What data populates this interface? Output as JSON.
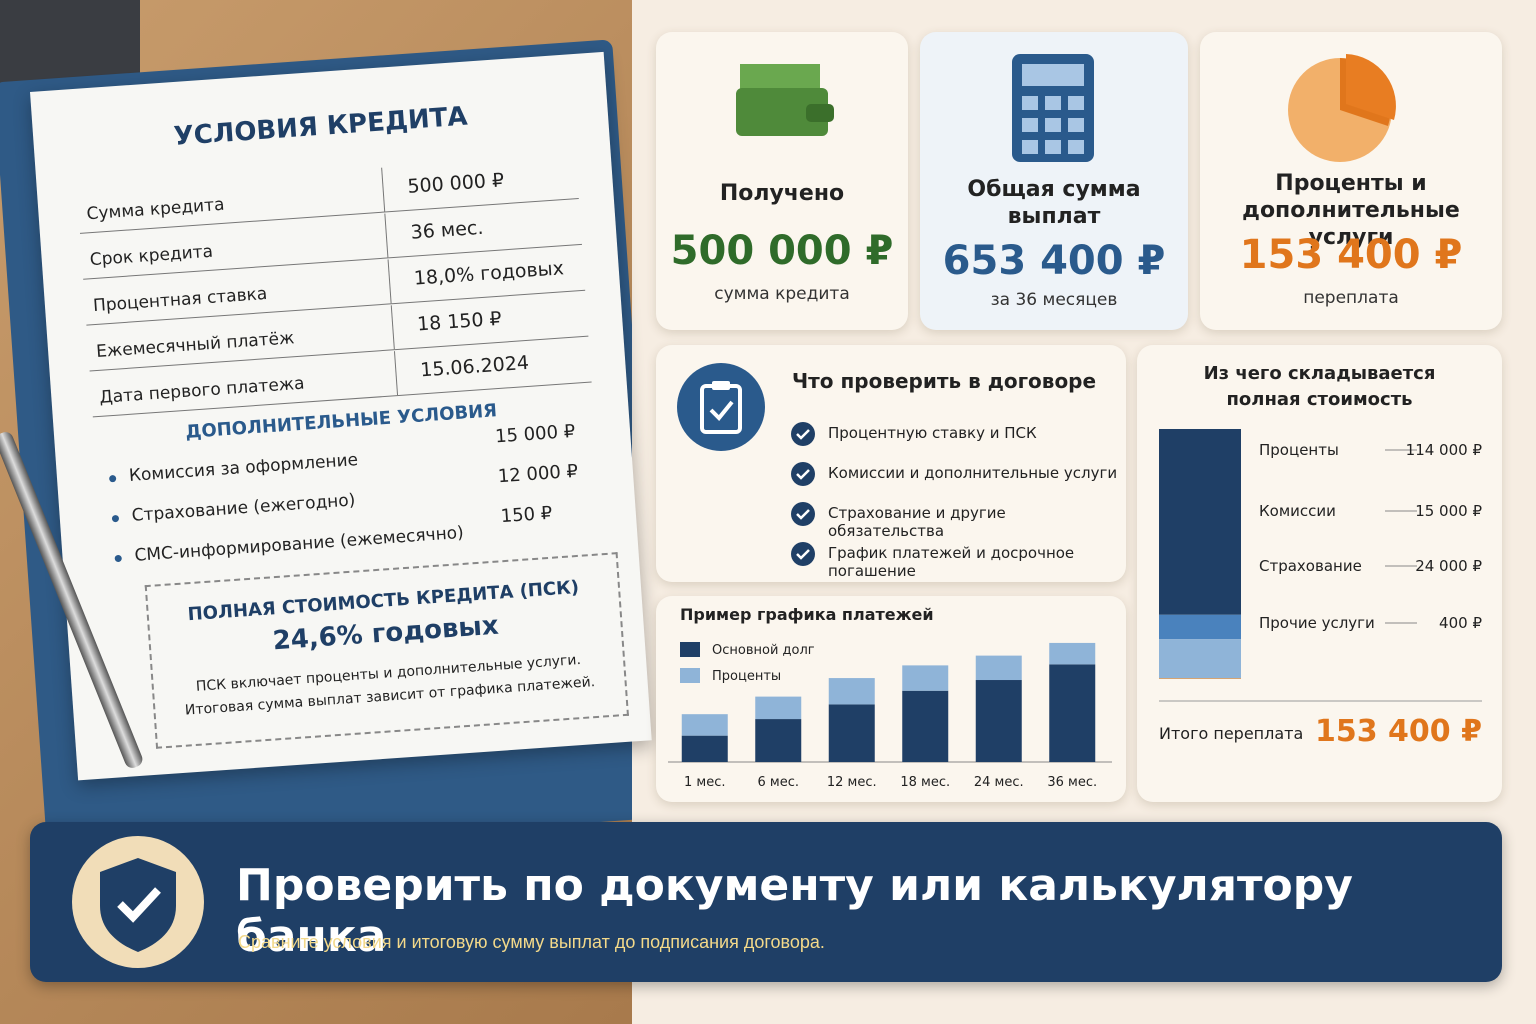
{
  "document": {
    "title": "УСЛОВИЯ КРЕДИТА",
    "rows": [
      [
        "Сумма кредита",
        "500 000 ₽"
      ],
      [
        "Срок кредита",
        "36 мес."
      ],
      [
        "Процентная ставка",
        "18,0% годовых"
      ],
      [
        "Ежемесячный платёж",
        "18 150 ₽"
      ],
      [
        "Дата первого платежа",
        "15.06.2024"
      ]
    ],
    "extra_title": "ДОПОЛНИТЕЛЬНЫЕ УСЛОВИЯ",
    "extras": [
      [
        "Комиссия за оформление",
        "15 000 ₽"
      ],
      [
        "Страхование (ежегодно)",
        "12 000 ₽"
      ],
      [
        "СМС-информирование (ежемесячно)",
        "150 ₽"
      ]
    ],
    "psk_title": "ПОЛНАЯ СТОИМОСТЬ КРЕДИТА (ПСК)",
    "psk_value": "24,6% годовых",
    "psk_note": [
      "ПСК включает проценты и дополнительные услуги.",
      "Итоговая сумма выплат зависит от графика платежей."
    ]
  },
  "cards": [
    {
      "title": "Получено",
      "value": "500 000 ₽",
      "caption": "сумма кредита",
      "color": "#2f6b2a"
    },
    {
      "title": "Общая сумма выплат",
      "value": "653 400 ₽",
      "caption": "за 36 месяцев",
      "color": "#2a5a8c"
    },
    {
      "title": "Проценты и дополнительные услуги",
      "value": "153 400 ₽",
      "caption": "переплата",
      "color": "#e0761c"
    }
  ],
  "checklist": {
    "title": "Что проверить в договоре",
    "items": [
      "Процентную ставку и ПСК",
      "Комиссии и дополнительные услуги",
      "Страхование и другие обязательства",
      "График платежей и досрочное погашение"
    ]
  },
  "chart_data": [
    {
      "type": "bar",
      "stacked": true,
      "title": "Пример графика платежей",
      "categories": [
        "1 мес.",
        "6 мес.",
        "12 мес.",
        "18 мес.",
        "24 мес.",
        "36 мес."
      ],
      "series": [
        {
          "name": "Основной долг",
          "color": "#1f3f66",
          "values": [
            27,
            44,
            59,
            73,
            84,
            100
          ]
        },
        {
          "name": "Проценты",
          "color": "#8fb4d8",
          "values": [
            22,
            23,
            27,
            26,
            25,
            22
          ]
        }
      ],
      "ylim": [
        0,
        125
      ]
    },
    {
      "type": "bar",
      "stacked": true,
      "title": "Из чего складывается полная стоимость",
      "series": [
        {
          "name": "Проценты",
          "color": "#1f3f66",
          "values": [
            114000
          ],
          "value_labels": [
            "114 000 ₽"
          ]
        },
        {
          "name": "Комиссии",
          "color": "#4a82bd",
          "values": [
            15000
          ],
          "value_labels": [
            "15 000 ₽"
          ]
        },
        {
          "name": "Страхование",
          "color": "#8fb4d8",
          "values": [
            24000
          ],
          "value_labels": [
            "24 000 ₽"
          ]
        },
        {
          "name": "Прочие услуги",
          "color": "#e8913a",
          "values": [
            400
          ],
          "value_labels": [
            "400 ₽"
          ]
        }
      ],
      "ylim": [
        0,
        153400
      ],
      "total_label": "Итого переплата",
      "total_value": "153 400 ₽"
    }
  ],
  "banner": {
    "title": "Проверить по документу или калькулятору банка",
    "subtitle": "Сравните условия и итоговую сумму выплат до подписания договора."
  }
}
